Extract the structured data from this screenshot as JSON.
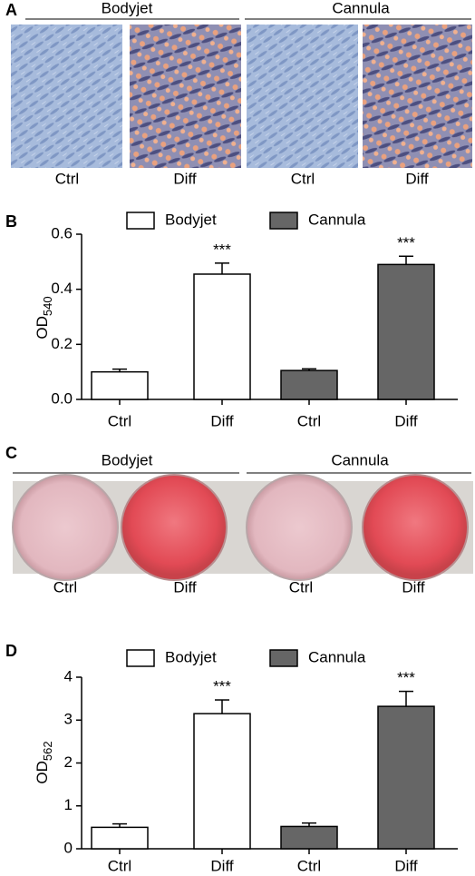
{
  "panels": {
    "a": {
      "label": "A",
      "groups": [
        "Bodyjet",
        "Cannula"
      ],
      "images": [
        "Ctrl",
        "Diff",
        "Ctrl",
        "Diff"
      ]
    },
    "c": {
      "label": "C",
      "groups": [
        "Bodyjet",
        "Cannula"
      ],
      "images": [
        "Ctrl",
        "Diff",
        "Ctrl",
        "Diff"
      ]
    }
  },
  "chart_data": [
    {
      "type": "bar",
      "panel_label": "B",
      "ylabel": {
        "text": "OD",
        "subscript": "540"
      },
      "categories": [
        "Ctrl",
        "Diff",
        "Ctrl",
        "Diff"
      ],
      "series": [
        {
          "name": "Bodyjet",
          "color": "#ffffff",
          "values": [
            0.1,
            0.455,
            null,
            null
          ],
          "errors": [
            0.01,
            0.04,
            null,
            null
          ],
          "significance": [
            null,
            "***",
            null,
            null
          ]
        },
        {
          "name": "Cannula",
          "color": "#666666",
          "values": [
            null,
            null,
            0.105,
            0.49
          ],
          "errors": [
            null,
            null,
            0.006,
            0.03
          ],
          "significance": [
            null,
            null,
            null,
            "***"
          ]
        }
      ],
      "ylim": [
        0,
        0.6
      ],
      "yticks": [
        {
          "value": 0,
          "label": "0.0"
        },
        0.2,
        0.4,
        0.6
      ]
    },
    {
      "type": "bar",
      "panel_label": "D",
      "ylabel": {
        "text": "OD",
        "subscript": "562"
      },
      "categories": [
        "Ctrl",
        "Diff",
        "Ctrl",
        "Diff"
      ],
      "series": [
        {
          "name": "Bodyjet",
          "color": "#ffffff",
          "values": [
            0.5,
            3.15,
            null,
            null
          ],
          "errors": [
            0.08,
            0.32,
            null,
            null
          ],
          "significance": [
            null,
            "***",
            null,
            null
          ]
        },
        {
          "name": "Cannula",
          "color": "#666666",
          "values": [
            null,
            null,
            0.52,
            3.32
          ],
          "errors": [
            null,
            null,
            0.08,
            0.35
          ],
          "significance": [
            null,
            null,
            null,
            "***"
          ]
        }
      ],
      "ylim": [
        0,
        4
      ],
      "yticks": [
        0,
        1,
        2,
        3,
        4
      ]
    }
  ]
}
